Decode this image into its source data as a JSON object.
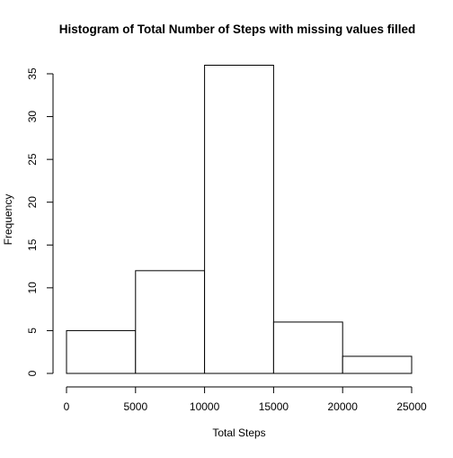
{
  "chart_data": {
    "type": "bar",
    "title": "Histogram of Total Number of Steps with missing values filled",
    "xlabel": "Total Steps",
    "ylabel": "Frequency",
    "bins": [
      {
        "from": 0,
        "to": 5000,
        "value": 5
      },
      {
        "from": 5000,
        "to": 10000,
        "value": 12
      },
      {
        "from": 10000,
        "to": 15000,
        "value": 36
      },
      {
        "from": 15000,
        "to": 20000,
        "value": 6
      },
      {
        "from": 20000,
        "to": 25000,
        "value": 2
      }
    ],
    "xlim": [
      0,
      25000
    ],
    "ylim": [
      0,
      35
    ],
    "x_ticks": [
      0,
      5000,
      10000,
      15000,
      20000,
      25000
    ],
    "y_ticks": [
      0,
      5,
      10,
      15,
      20,
      25,
      30,
      35
    ],
    "grid": false,
    "legend": "none",
    "colors": {
      "bar_fill": "#ffffff",
      "bar_stroke": "#000000",
      "text": "#000000"
    }
  }
}
